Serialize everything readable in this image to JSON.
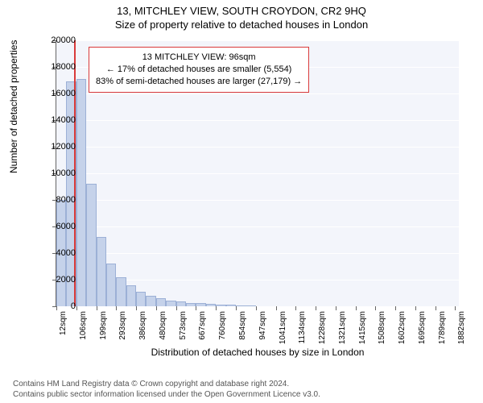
{
  "title": "13, MITCHLEY VIEW, SOUTH CROYDON, CR2 9HQ",
  "subtitle": "Size of property relative to detached houses in London",
  "y_axis_label": "Number of detached properties",
  "x_axis_label": "Distribution of detached houses by size in London",
  "chart": {
    "type": "histogram",
    "plot_background": "#f3f5fb",
    "grid_color": "#ffffff",
    "bar_fill": "#c5d2ea",
    "bar_stroke": "#9cb0d6",
    "marker_color": "#d93a3a",
    "ylim": [
      0,
      20000
    ],
    "ytick_step": 2000,
    "x_start": 12,
    "x_end": 1900,
    "x_ticks": [
      12,
      106,
      199,
      293,
      386,
      480,
      573,
      667,
      760,
      854,
      947,
      1041,
      1134,
      1228,
      1321,
      1415,
      1508,
      1602,
      1695,
      1789,
      1882
    ],
    "x_tick_suffix": "sqm",
    "marker_x": 96,
    "bars": [
      {
        "x0": 12,
        "x1": 59,
        "y": 8000
      },
      {
        "x0": 59,
        "x1": 106,
        "y": 16900
      },
      {
        "x0": 106,
        "x1": 153,
        "y": 17100
      },
      {
        "x0": 153,
        "x1": 199,
        "y": 9200
      },
      {
        "x0": 199,
        "x1": 246,
        "y": 5200
      },
      {
        "x0": 246,
        "x1": 293,
        "y": 3200
      },
      {
        "x0": 293,
        "x1": 340,
        "y": 2200
      },
      {
        "x0": 340,
        "x1": 386,
        "y": 1600
      },
      {
        "x0": 386,
        "x1": 433,
        "y": 1100
      },
      {
        "x0": 433,
        "x1": 480,
        "y": 800
      },
      {
        "x0": 480,
        "x1": 527,
        "y": 600
      },
      {
        "x0": 527,
        "x1": 573,
        "y": 430
      },
      {
        "x0": 573,
        "x1": 620,
        "y": 350
      },
      {
        "x0": 620,
        "x1": 667,
        "y": 260
      },
      {
        "x0": 667,
        "x1": 714,
        "y": 220
      },
      {
        "x0": 714,
        "x1": 760,
        "y": 170
      },
      {
        "x0": 760,
        "x1": 807,
        "y": 140
      },
      {
        "x0": 807,
        "x1": 854,
        "y": 110
      },
      {
        "x0": 854,
        "x1": 901,
        "y": 80
      },
      {
        "x0": 901,
        "x1": 947,
        "y": 60
      }
    ]
  },
  "annotation": {
    "border_color": "#d93a3a",
    "lines": [
      "13 MITCHLEY VIEW: 96sqm",
      "← 17% of detached houses are smaller (5,554)",
      "83% of semi-detached houses are larger (27,179) →"
    ]
  },
  "footer": {
    "line1": "Contains HM Land Registry data © Crown copyright and database right 2024.",
    "line2": "Contains public sector information licensed under the Open Government Licence v3.0."
  }
}
